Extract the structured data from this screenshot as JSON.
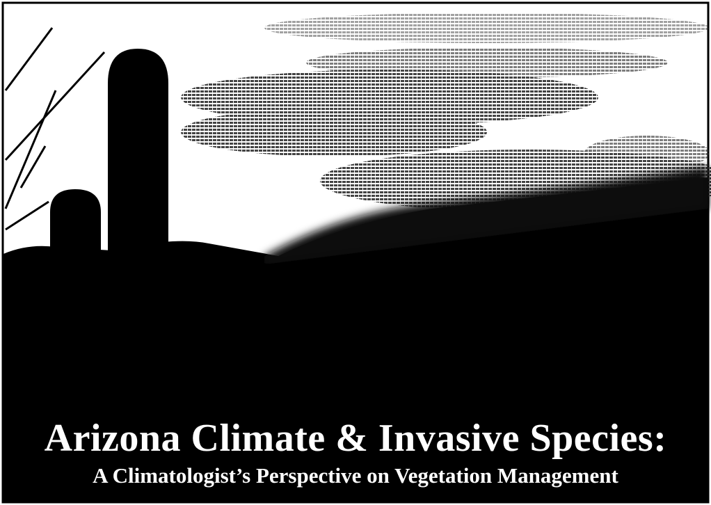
{
  "title": "Arizona Climate & Invasive Species:",
  "subtitle": "A Climatologist’s Perspective on Vegetation Management"
}
